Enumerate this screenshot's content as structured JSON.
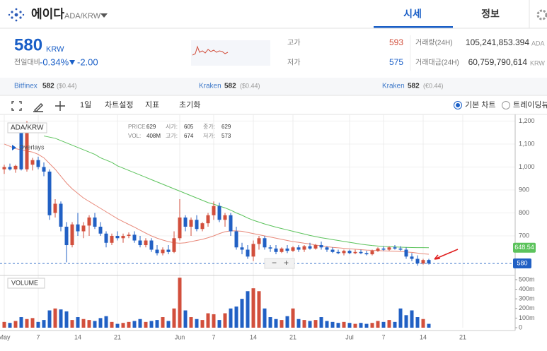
{
  "header": {
    "name": "에이다",
    "pair": "ADA/KRW",
    "tabs": [
      "시세",
      "정보"
    ]
  },
  "price_panel": {
    "price": "580",
    "currency": "KRW",
    "change_label": "전일대비",
    "change_pct": "-0.34%",
    "change_abs": "-2.00",
    "high_label": "고가",
    "high": "593",
    "low_label": "저가",
    "low": "575",
    "volume_label": "거래량(24H)",
    "volume": "105,241,853.394",
    "volume_unit": "ADA",
    "value_label": "거래대금(24H)",
    "value": "60,759,790,614",
    "value_unit": "KRW"
  },
  "exchanges": [
    {
      "name": "Bitfinex",
      "price": "582",
      "fx": "($0.44)"
    },
    {
      "name": "Kraken",
      "price": "582",
      "fx": "($0.44)"
    },
    {
      "name": "Kraken",
      "price": "582",
      "fx": "(€0.44)"
    }
  ],
  "toolbar": {
    "interval": "1일",
    "settings": "차트설정",
    "indicators": "지표",
    "reset": "초기화",
    "modes": [
      "기본 차트",
      "트레이딩뷰"
    ]
  },
  "chart": {
    "type": "candlestick",
    "symbol": "ADA/KRW",
    "overlays": "Overlays",
    "volume_title": "VOLUME",
    "info": [
      {
        "label": "PRICE:",
        "value": "629"
      },
      {
        "label": "시가:",
        "value": "605"
      },
      {
        "label": "종가:",
        "value": "629"
      },
      {
        "label": "VOL:",
        "value": "408M"
      },
      {
        "label": "고가:",
        "value": "674"
      },
      {
        "label": "저가:",
        "value": "573"
      }
    ],
    "up_color": "#d24f3c",
    "down_color": "#2160c4",
    "grid": true,
    "xlim": [
      -0.75,
      90.25
    ],
    "xticks": [
      {
        "value": 0,
        "label": "May"
      },
      {
        "value": 6,
        "label": "7"
      },
      {
        "value": 13,
        "label": "14"
      },
      {
        "value": 20,
        "label": "21"
      },
      {
        "value": 31,
        "label": "Jun"
      },
      {
        "value": 37,
        "label": "7"
      },
      {
        "value": 44,
        "label": "14"
      },
      {
        "value": 51,
        "label": "21"
      },
      {
        "value": 61,
        "label": "Jul"
      },
      {
        "value": 67,
        "label": "7"
      },
      {
        "value": 74,
        "label": "14"
      },
      {
        "value": 81,
        "label": "21"
      }
    ],
    "ylim": [
      534,
      1229
    ],
    "yticks": [
      700,
      800,
      900,
      {
        "value": 1000,
        "label": "1,000"
      },
      {
        "value": 1100,
        "label": "1,100"
      },
      {
        "value": 1200,
        "label": "1,200"
      }
    ],
    "vlim": [
      0,
      529
    ],
    "vticks": [
      0,
      {
        "value": 100,
        "label": "100m"
      },
      {
        "value": 200,
        "label": "200m"
      },
      {
        "value": 300,
        "label": "300m"
      },
      {
        "value": 400,
        "label": "400m"
      },
      {
        "value": 500,
        "label": "500m"
      }
    ],
    "candles": [
      {
        "o": 990,
        "h": 1010,
        "l": 970,
        "c": 1000,
        "v": 60
      },
      {
        "o": 1000,
        "h": 1015,
        "l": 985,
        "c": 990,
        "v": 50
      },
      {
        "o": 990,
        "h": 1010,
        "l": 975,
        "c": 1005,
        "v": 70
      },
      {
        "o": 1150,
        "h": 1165,
        "l": 985,
        "c": 990,
        "v": 110
      },
      {
        "o": 990,
        "h": 1200,
        "l": 980,
        "c": 1180,
        "v": 90
      },
      {
        "o": 1010,
        "h": 1040,
        "l": 985,
        "c": 1030,
        "v": 100
      },
      {
        "o": 1030,
        "h": 1045,
        "l": 990,
        "c": 1000,
        "v": 60
      },
      {
        "o": 1000,
        "h": 1020,
        "l": 960,
        "c": 980,
        "v": 80
      },
      {
        "o": 980,
        "h": 990,
        "l": 770,
        "c": 790,
        "v": 180
      },
      {
        "o": 800,
        "h": 860,
        "l": 780,
        "c": 840,
        "v": 200
      },
      {
        "o": 840,
        "h": 850,
        "l": 720,
        "c": 740,
        "v": 190
      },
      {
        "o": 740,
        "h": 760,
        "l": 585,
        "c": 660,
        "v": 170
      },
      {
        "o": 660,
        "h": 760,
        "l": 650,
        "c": 750,
        "v": 80
      },
      {
        "o": 750,
        "h": 800,
        "l": 700,
        "c": 720,
        "v": 110
      },
      {
        "o": 720,
        "h": 760,
        "l": 690,
        "c": 745,
        "v": 90
      },
      {
        "o": 745,
        "h": 790,
        "l": 700,
        "c": 780,
        "v": 80
      },
      {
        "o": 780,
        "h": 800,
        "l": 730,
        "c": 740,
        "v": 70
      },
      {
        "o": 740,
        "h": 760,
        "l": 700,
        "c": 710,
        "v": 100
      },
      {
        "o": 710,
        "h": 720,
        "l": 650,
        "c": 670,
        "v": 120
      },
      {
        "o": 670,
        "h": 710,
        "l": 660,
        "c": 700,
        "v": 60
      },
      {
        "o": 700,
        "h": 720,
        "l": 680,
        "c": 690,
        "v": 40
      },
      {
        "o": 690,
        "h": 710,
        "l": 670,
        "c": 700,
        "v": 50
      },
      {
        "o": 700,
        "h": 715,
        "l": 690,
        "c": 705,
        "v": 60
      },
      {
        "o": 705,
        "h": 720,
        "l": 670,
        "c": 680,
        "v": 70
      },
      {
        "o": 680,
        "h": 700,
        "l": 650,
        "c": 660,
        "v": 90
      },
      {
        "o": 660,
        "h": 690,
        "l": 650,
        "c": 680,
        "v": 60
      },
      {
        "o": 680,
        "h": 690,
        "l": 630,
        "c": 640,
        "v": 70
      },
      {
        "o": 640,
        "h": 660,
        "l": 615,
        "c": 625,
        "v": 80
      },
      {
        "o": 625,
        "h": 650,
        "l": 615,
        "c": 640,
        "v": 110
      },
      {
        "o": 640,
        "h": 660,
        "l": 620,
        "c": 630,
        "v": 70
      },
      {
        "o": 630,
        "h": 720,
        "l": 625,
        "c": 690,
        "v": 200
      },
      {
        "o": 690,
        "h": 860,
        "l": 680,
        "c": 780,
        "v": 520
      },
      {
        "o": 780,
        "h": 790,
        "l": 720,
        "c": 740,
        "v": 180
      },
      {
        "o": 740,
        "h": 780,
        "l": 700,
        "c": 770,
        "v": 110
      },
      {
        "o": 770,
        "h": 790,
        "l": 720,
        "c": 730,
        "v": 90
      },
      {
        "o": 730,
        "h": 760,
        "l": 720,
        "c": 755,
        "v": 80
      },
      {
        "o": 755,
        "h": 800,
        "l": 740,
        "c": 790,
        "v": 150
      },
      {
        "o": 790,
        "h": 850,
        "l": 770,
        "c": 830,
        "v": 140
      },
      {
        "o": 830,
        "h": 845,
        "l": 760,
        "c": 770,
        "v": 80
      },
      {
        "o": 770,
        "h": 800,
        "l": 740,
        "c": 790,
        "v": 150
      },
      {
        "o": 790,
        "h": 800,
        "l": 700,
        "c": 720,
        "v": 200
      },
      {
        "o": 720,
        "h": 740,
        "l": 640,
        "c": 650,
        "v": 220
      },
      {
        "o": 650,
        "h": 670,
        "l": 620,
        "c": 640,
        "v": 300
      },
      {
        "o": 640,
        "h": 660,
        "l": 600,
        "c": 610,
        "v": 380
      },
      {
        "o": 610,
        "h": 680,
        "l": 590,
        "c": 665,
        "v": 410
      },
      {
        "o": 665,
        "h": 700,
        "l": 640,
        "c": 690,
        "v": 380
      },
      {
        "o": 690,
        "h": 700,
        "l": 640,
        "c": 650,
        "v": 200
      },
      {
        "o": 650,
        "h": 660,
        "l": 630,
        "c": 645,
        "v": 110
      },
      {
        "o": 645,
        "h": 660,
        "l": 620,
        "c": 630,
        "v": 90
      },
      {
        "o": 630,
        "h": 650,
        "l": 625,
        "c": 645,
        "v": 80
      },
      {
        "o": 645,
        "h": 660,
        "l": 625,
        "c": 635,
        "v": 120
      },
      {
        "o": 635,
        "h": 655,
        "l": 630,
        "c": 650,
        "v": 200
      },
      {
        "o": 650,
        "h": 660,
        "l": 630,
        "c": 640,
        "v": 90
      },
      {
        "o": 640,
        "h": 660,
        "l": 630,
        "c": 655,
        "v": 80
      },
      {
        "o": 655,
        "h": 670,
        "l": 640,
        "c": 645,
        "v": 70
      },
      {
        "o": 645,
        "h": 665,
        "l": 640,
        "c": 660,
        "v": 80
      },
      {
        "o": 660,
        "h": 675,
        "l": 640,
        "c": 650,
        "v": 110
      },
      {
        "o": 650,
        "h": 655,
        "l": 630,
        "c": 640,
        "v": 70
      },
      {
        "o": 640,
        "h": 650,
        "l": 625,
        "c": 630,
        "v": 60
      },
      {
        "o": 630,
        "h": 640,
        "l": 620,
        "c": 625,
        "v": 50
      },
      {
        "o": 625,
        "h": 640,
        "l": 615,
        "c": 635,
        "v": 60
      },
      {
        "o": 635,
        "h": 640,
        "l": 620,
        "c": 625,
        "v": 50
      },
      {
        "o": 625,
        "h": 640,
        "l": 620,
        "c": 630,
        "v": 40
      },
      {
        "o": 630,
        "h": 640,
        "l": 620,
        "c": 625,
        "v": 50
      },
      {
        "o": 625,
        "h": 635,
        "l": 615,
        "c": 620,
        "v": 40
      },
      {
        "o": 620,
        "h": 640,
        "l": 615,
        "c": 635,
        "v": 50
      },
      {
        "o": 635,
        "h": 650,
        "l": 630,
        "c": 645,
        "v": 70
      },
      {
        "o": 645,
        "h": 655,
        "l": 635,
        "c": 640,
        "v": 60
      },
      {
        "o": 640,
        "h": 655,
        "l": 635,
        "c": 650,
        "v": 80
      },
      {
        "o": 650,
        "h": 660,
        "l": 640,
        "c": 645,
        "v": 60
      },
      {
        "o": 645,
        "h": 655,
        "l": 635,
        "c": 640,
        "v": 200
      },
      {
        "o": 640,
        "h": 650,
        "l": 600,
        "c": 610,
        "v": 130
      },
      {
        "o": 610,
        "h": 625,
        "l": 590,
        "c": 600,
        "v": 180
      },
      {
        "o": 600,
        "h": 615,
        "l": 570,
        "c": 580,
        "v": 110
      },
      {
        "o": 580,
        "h": 600,
        "l": 575,
        "c": 595,
        "v": 90
      },
      {
        "o": 595,
        "h": 600,
        "l": 575,
        "c": 580,
        "v": 40
      }
    ],
    "ma_lines": [
      {
        "color": "#5cc35c",
        "values": [
          null,
          null,
          null,
          null,
          null,
          null,
          null,
          1135,
          1130,
          1125,
          1115,
          1105,
          1095,
          1085,
          1075,
          1065,
          1055,
          1040,
          1030,
          1020,
          1005,
          995,
          985,
          975,
          965,
          955,
          945,
          935,
          925,
          915,
          905,
          895,
          885,
          875,
          865,
          855,
          845,
          838,
          830,
          822,
          812,
          800,
          790,
          778,
          768,
          760,
          752,
          745,
          738,
          732,
          726,
          720,
          714,
          708,
          702,
          697,
          692,
          688,
          684,
          680,
          676,
          672,
          668,
          664,
          661,
          658,
          656,
          654,
          653,
          652,
          651,
          650,
          649.5,
          649,
          648.8,
          648.54
        ],
        "value_labels": [
          null,
          null,
          null,
          null,
          null,
          null,
          null,
          null,
          null,
          null,
          null,
          null,
          null,
          null,
          null,
          null,
          null,
          null,
          null,
          null,
          null,
          null,
          null,
          null,
          null,
          null,
          null,
          null,
          null,
          null,
          null,
          null,
          null,
          null,
          null,
          null,
          null,
          null,
          null,
          null,
          null,
          null,
          null,
          null,
          null,
          null,
          null,
          null,
          null,
          null,
          null,
          null,
          null,
          null,
          null,
          null,
          null,
          null,
          null,
          null,
          null,
          null,
          null,
          null,
          null,
          null,
          null,
          null,
          null,
          null,
          null,
          null,
          null,
          null,
          null,
          "648.54"
        ]
      },
      {
        "color": "#e8897a",
        "values": [
          1100,
          1090,
          1080,
          1075,
          1070,
          1065,
          1055,
          1040,
          1015,
          990,
          960,
          930,
          905,
          885,
          865,
          850,
          835,
          820,
          805,
          790,
          775,
          762,
          750,
          738,
          725,
          712,
          700,
          690,
          682,
          675,
          670,
          668,
          670,
          675,
          680,
          685,
          692,
          700,
          710,
          718,
          722,
          722,
          720,
          715,
          710,
          705,
          700,
          695,
          690,
          685,
          680,
          675,
          672,
          668,
          665,
          660,
          657,
          653,
          650,
          648,
          646,
          644,
          642,
          640,
          638,
          637,
          636,
          635,
          634,
          633,
          632,
          630,
          628,
          625,
          622,
          620
        ]
      }
    ]
  }
}
